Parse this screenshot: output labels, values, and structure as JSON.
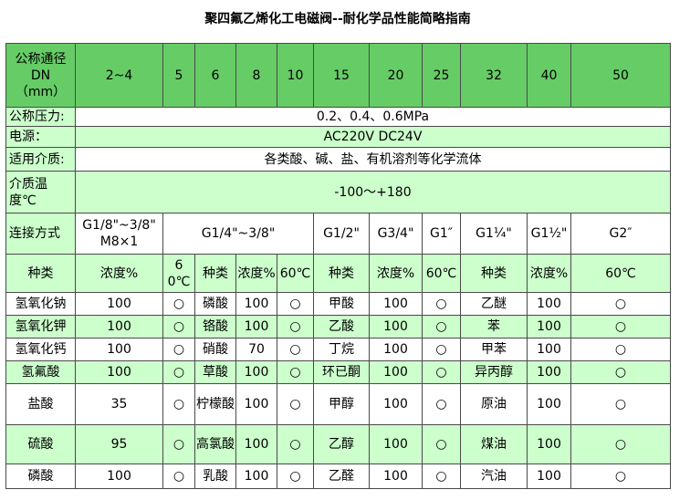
{
  "title": "聚四氟乙烯化工电磁阀--耐化学品性能简略指南",
  "header": {
    "label": [
      "公称通径",
      "DN",
      "（mm）"
    ],
    "sizes": [
      "2~4",
      "5",
      "6",
      "8",
      "10",
      "15",
      "20",
      "25",
      "32",
      "40",
      "50"
    ]
  },
  "specs": [
    {
      "label": "公称压力:",
      "value": "0.2、0.4、0.6MPa"
    },
    {
      "label": "电源：",
      "value": "AC220V  DC24V"
    },
    {
      "label": "适用介质:",
      "value": "各类酸、碱、盐、有机溶剂等化学流体"
    },
    {
      "label": "介质温度℃",
      "value": "-100～+180"
    }
  ],
  "connection": {
    "label": "连接方式",
    "items": [
      "G1/8\"~3/8\" M8×1",
      "G1/4\"~3/8\"",
      "G1/2\"",
      "G3/4\"",
      "G1″",
      "G1¼\"",
      "G1½\"",
      "G2″"
    ]
  },
  "columns": [
    "种类",
    "浓度%",
    "60℃",
    "种类",
    "浓度%",
    "60℃",
    "种类",
    "浓度%",
    "60℃",
    "种类",
    "浓度%",
    "60℃"
  ],
  "rows": [
    [
      "氢氧化钠",
      "100",
      "○",
      "磷酸",
      "100",
      "○",
      "甲酸",
      "100",
      "○",
      "乙醚",
      "100",
      "○"
    ],
    [
      "氢氧化钾",
      "100",
      "○",
      "铬酸",
      "100",
      "○",
      "乙酸",
      "100",
      "○",
      "苯",
      "100",
      "○"
    ],
    [
      "氢氧化钙",
      "100",
      "○",
      "硝酸",
      "70",
      "○",
      "丁烷",
      "100",
      "○",
      "甲苯",
      "100",
      "○"
    ],
    [
      "氢氟酸",
      "100",
      "○",
      "草酸",
      "100",
      "○",
      "环已酮",
      "100",
      "○",
      "异丙醇",
      "100",
      "○"
    ],
    [
      "盐酸",
      "35",
      "○",
      "柠檬酸",
      "100",
      "○",
      "甲醇",
      "100",
      "○",
      "原油",
      "100",
      "○"
    ],
    [
      "硫酸",
      "95",
      "○",
      "高氯酸",
      "100",
      "○",
      "乙醇",
      "100",
      "○",
      "煤油",
      "100",
      "○"
    ],
    [
      "磷酸",
      "100",
      "○",
      "乳酸",
      "100",
      "○",
      "乙醛",
      "100",
      "○",
      "汽油",
      "100",
      "○"
    ]
  ]
}
